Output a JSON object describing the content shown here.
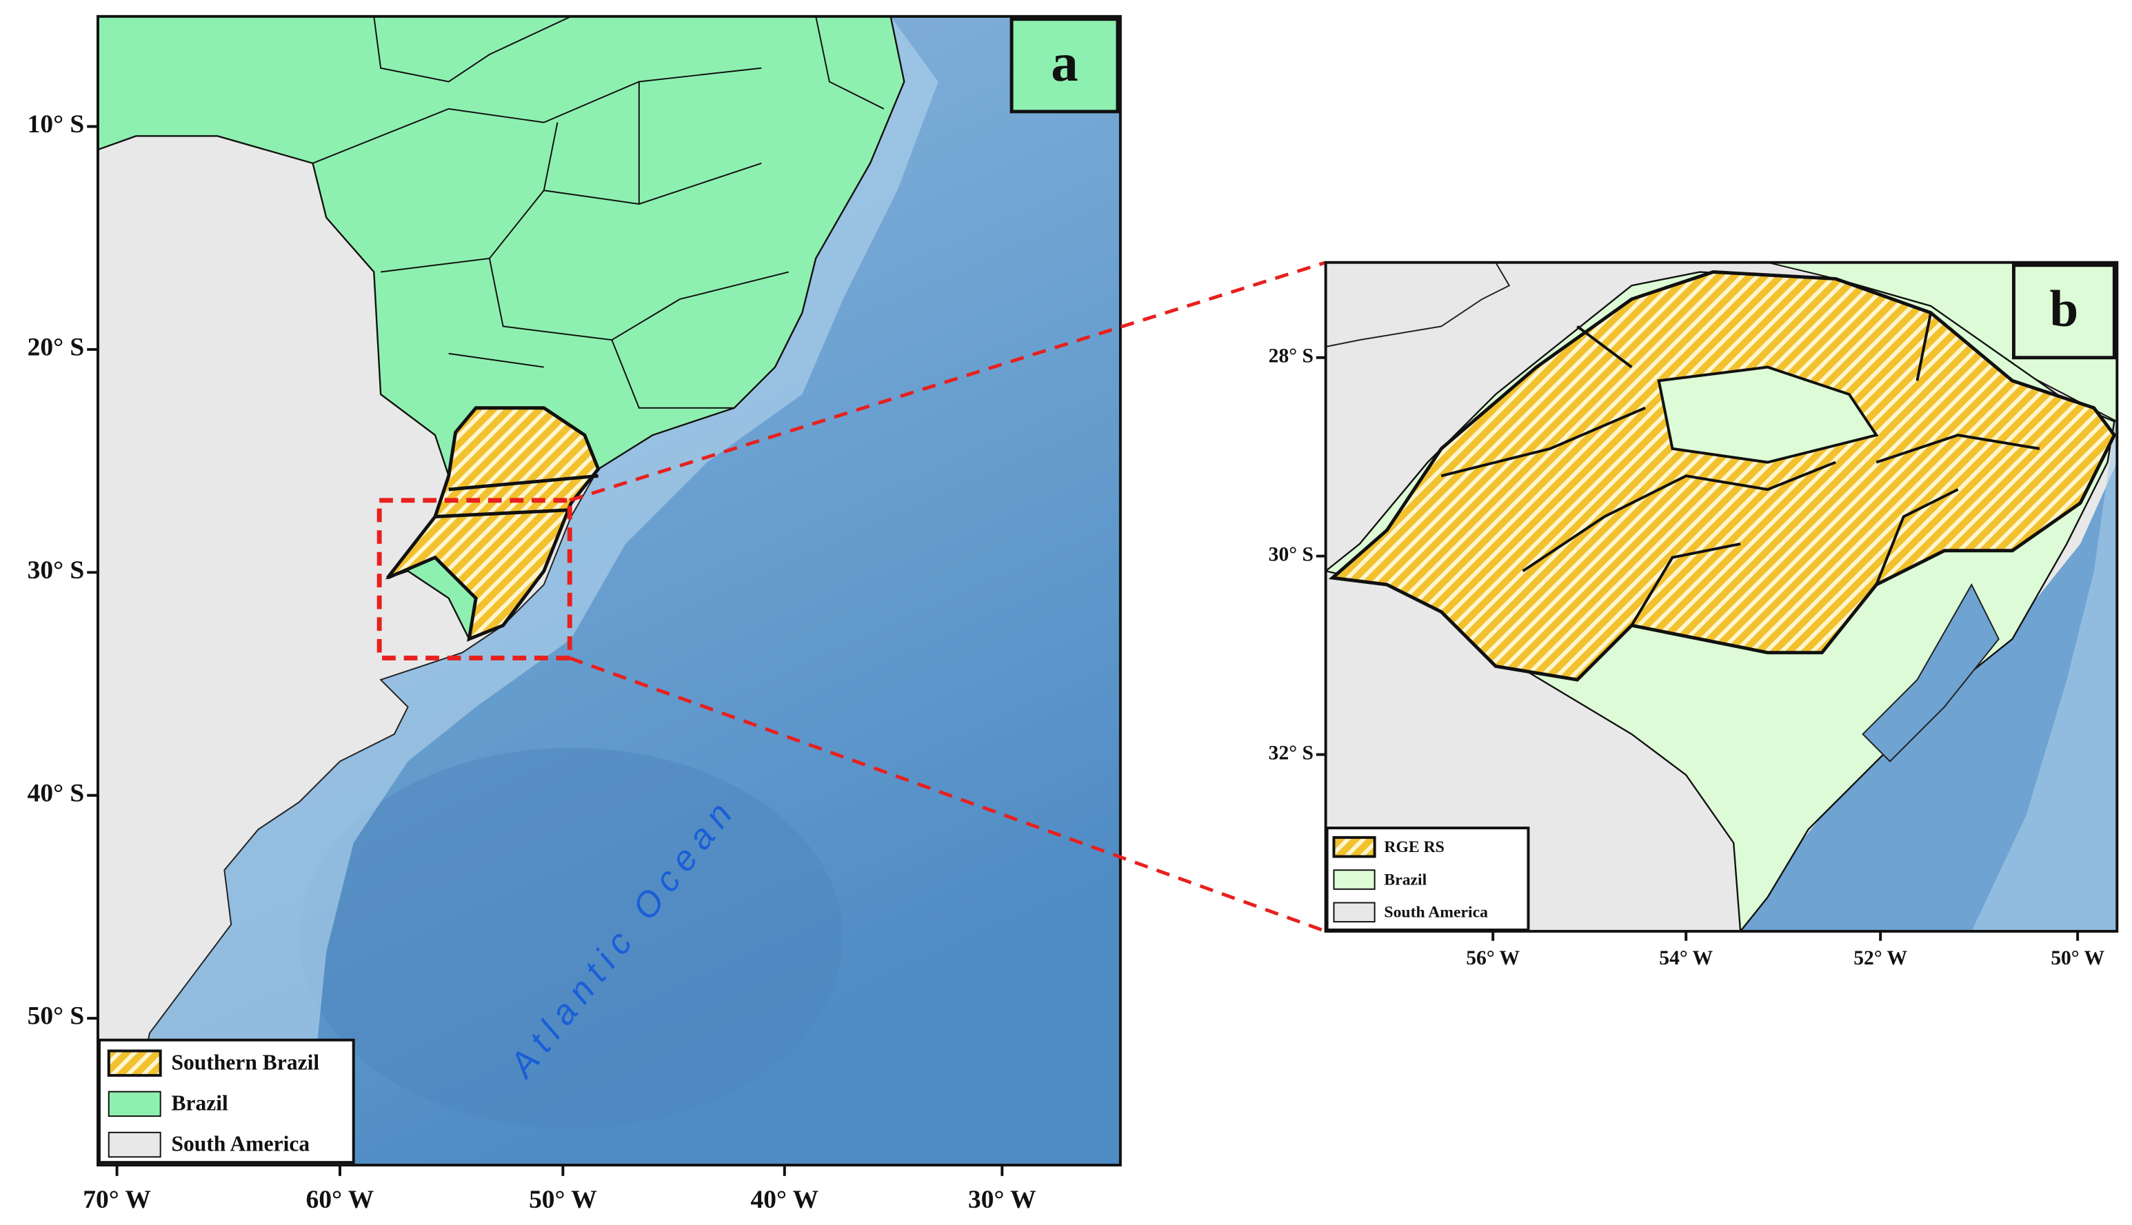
{
  "panels": [
    {
      "label": "a",
      "lat_labels": [
        "10° S",
        "20° S",
        "30° S",
        "40° S",
        "50° S"
      ],
      "lon_labels": [
        "70° W",
        "60° W",
        "50° W",
        "40° W",
        "30° W"
      ],
      "legend": [
        "Southern Brazil",
        "Brazil",
        "South America"
      ],
      "ocean_label": "Atlantic Ocean"
    },
    {
      "label": "b",
      "lat_labels": [
        "28° S",
        "30° S",
        "32° S"
      ],
      "lon_labels": [
        "56° W",
        "54° W",
        "52° W",
        "50° W"
      ],
      "legend": [
        "RGE RS",
        "Brazil",
        "South America"
      ]
    }
  ]
}
